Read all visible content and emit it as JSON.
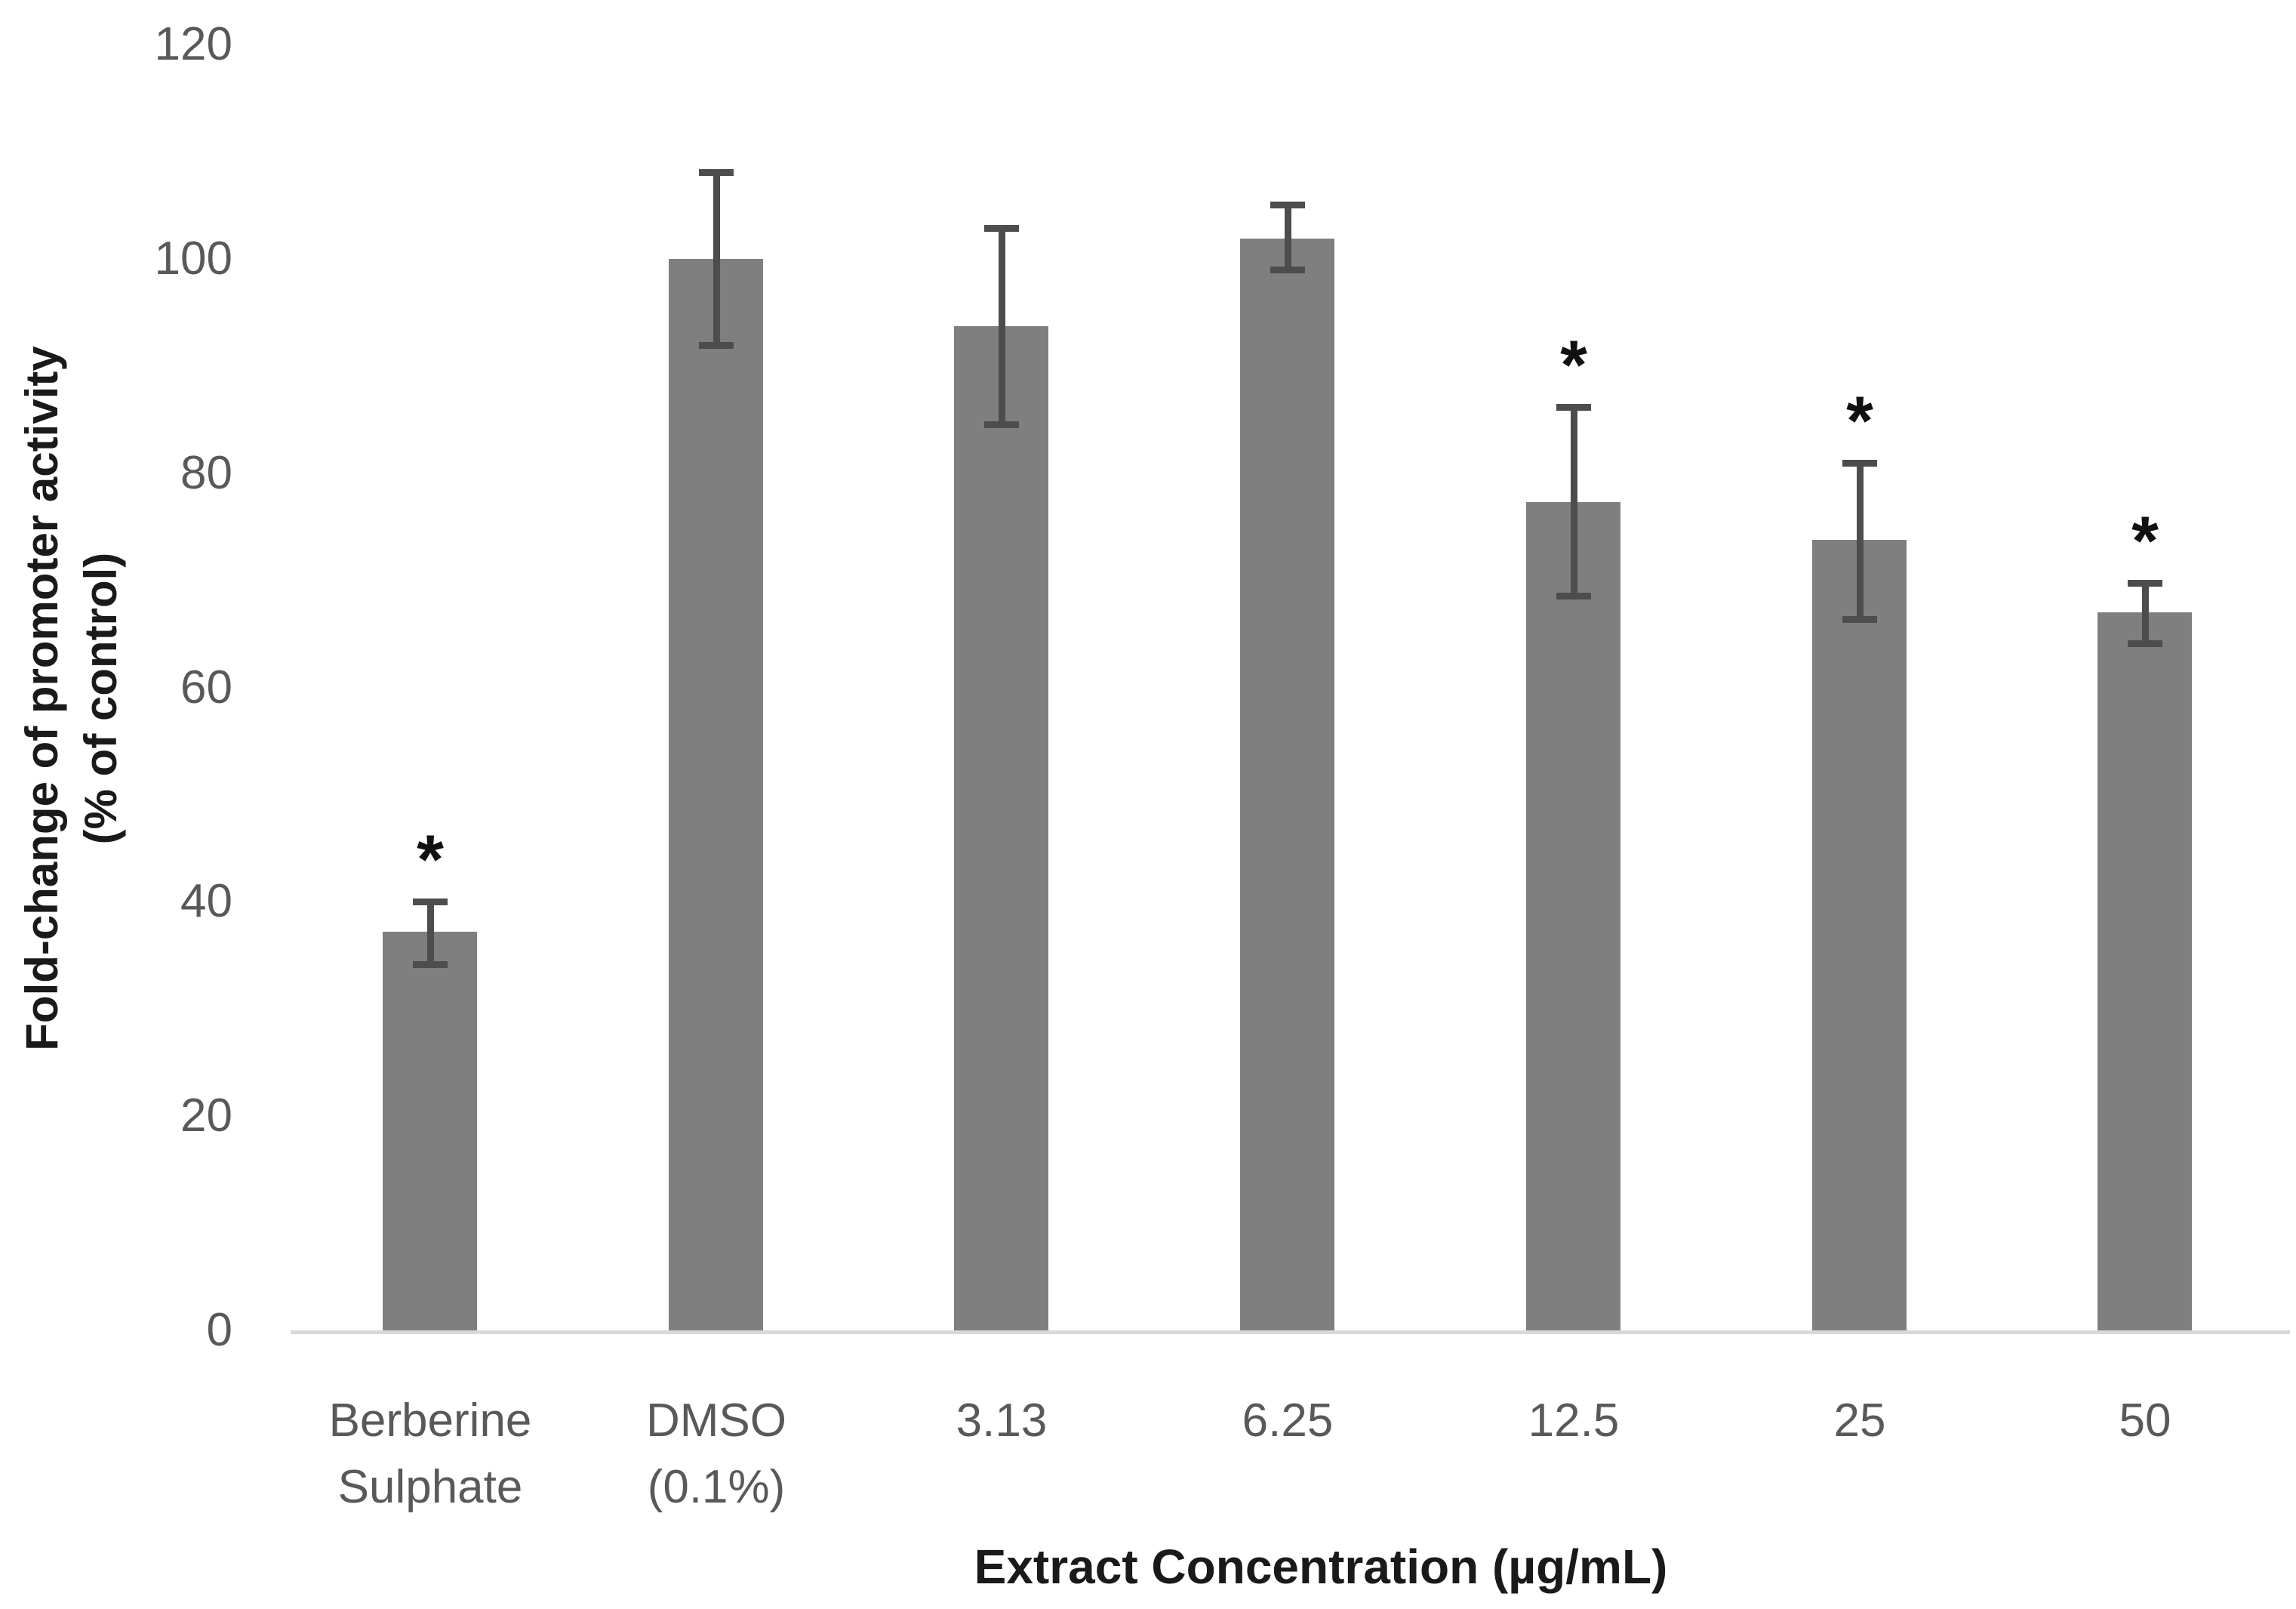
{
  "chart_data": {
    "type": "bar",
    "title": "",
    "xlabel": "Extract Concentration (µg/mL)",
    "ylabel_line1": "Fold-change of promoter activity",
    "ylabel_line2": "(% of control)",
    "ylim": [
      0,
      120
    ],
    "yticks": [
      120,
      100,
      80,
      60,
      40,
      20,
      0
    ],
    "grid": "off",
    "legend": "none",
    "categories": [
      "Berberine Sulphate",
      "DMSO (0.1%)",
      "3.13",
      "6.25",
      "12.5",
      "25",
      "50"
    ],
    "category_display_labels": [
      "Berberine\nSulphate",
      "DMSO\n(0.1%)",
      "3.13",
      "6.25",
      "12.5",
      "25",
      "50"
    ],
    "series": [
      {
        "name": "Fold-change of promoter activity (% of control)",
        "values": [
          37.2,
          100.0,
          93.7,
          101.9,
          77.3,
          73.8,
          67.0
        ]
      }
    ],
    "error_up": [
      2.8,
      8.1,
      9.2,
      3.2,
      8.9,
      7.2,
      2.8
    ],
    "error_down": [
      3.0,
      8.0,
      9.1,
      2.9,
      8.7,
      7.4,
      2.9
    ],
    "significance": [
      true,
      false,
      false,
      false,
      true,
      true,
      true
    ],
    "significance_marker": "*",
    "bar_color": "#7f7f7f",
    "error_bar_color": "#4d4d4d",
    "axis_line_color": "#d9d9d9",
    "tick_label_color": "#595959",
    "axis_title_color": "#1a1a1a"
  }
}
